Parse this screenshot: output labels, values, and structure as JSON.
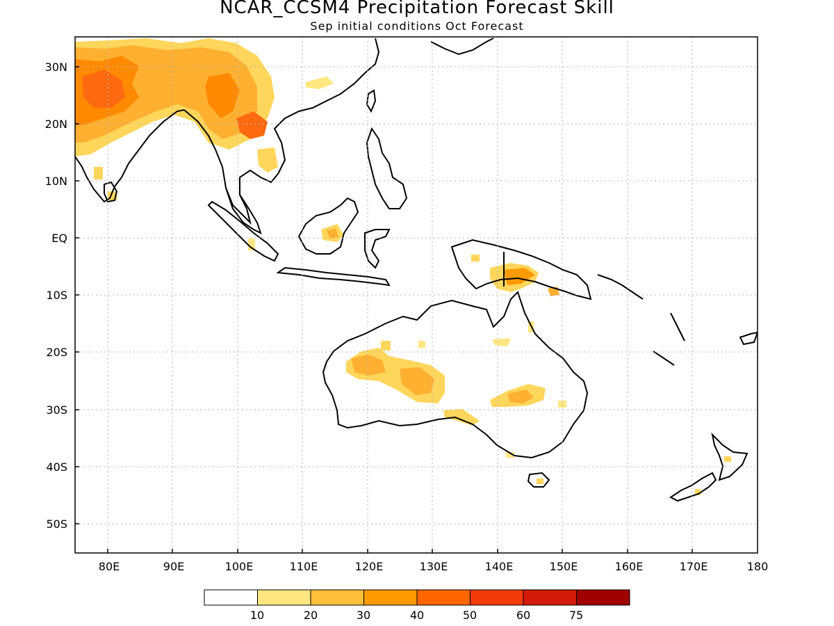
{
  "title": "NCAR_CCSM4 Precipitation Forecast Skill",
  "subtitle": "Sep initial conditions  Oct Forecast",
  "map": {
    "lon_range": [
      75,
      180
    ],
    "lat_range": [
      -55,
      35
    ],
    "grid": true,
    "lon_ticks": [
      "80E",
      "90E",
      "100E",
      "110E",
      "120E",
      "130E",
      "140E",
      "150E",
      "160E",
      "170E",
      "180"
    ],
    "lat_ticks": [
      "30N",
      "20N",
      "10N",
      "EQ",
      "10S",
      "20S",
      "30S",
      "40S",
      "50S"
    ]
  },
  "colorbar": {
    "colors": [
      "#ffffff",
      "#ffe680",
      "#ffbf3a",
      "#ff9a00",
      "#ff6600",
      "#f23a0a",
      "#d41a0a",
      "#a00000"
    ],
    "labels": [
      "10",
      "20",
      "30",
      "40",
      "50",
      "60",
      "75"
    ]
  },
  "skill_regions": [
    {
      "name": "India / South Asia",
      "level": "30-50"
    },
    {
      "name": "Southern China / Indochina",
      "level": "30-50"
    },
    {
      "name": "Borneo",
      "level": "10-20"
    },
    {
      "name": "New Guinea",
      "level": "20-40"
    },
    {
      "name": "Western Australia interior",
      "level": "10-30"
    },
    {
      "name": "Eastern Australia interior",
      "level": "10-30"
    },
    {
      "name": "Southern Australia coast",
      "level": "10-20"
    },
    {
      "name": "New Zealand",
      "level": "10-20"
    }
  ]
}
